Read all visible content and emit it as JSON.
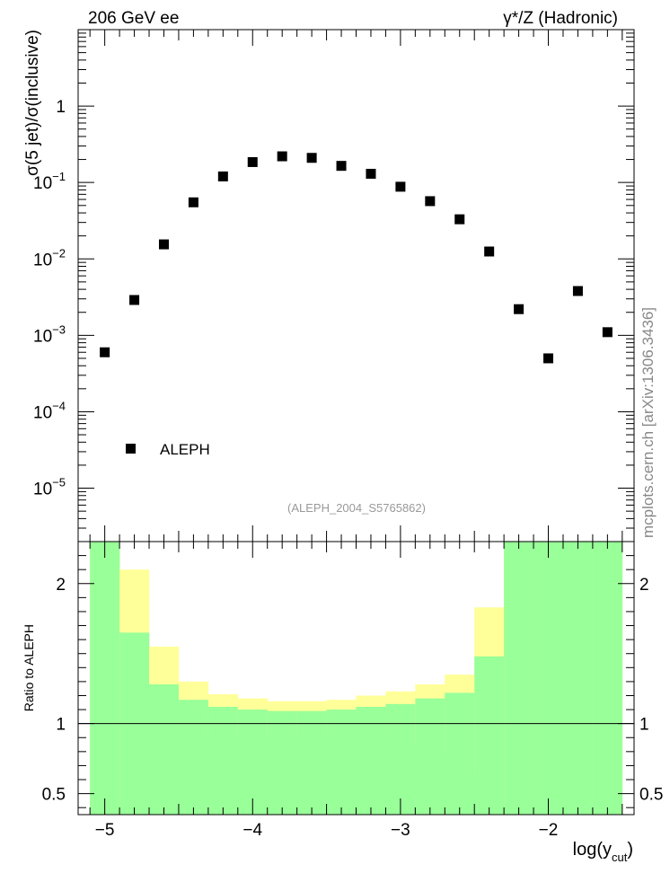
{
  "header": {
    "left_title": "206 GeV ee",
    "right_title": "γ*/Z (Hadronic)"
  },
  "side_label": "mcplots.cern.ch [arXiv:1306.3436]",
  "colors": {
    "band_inner": "#99ff99",
    "band_outer": "#ffff99",
    "marker": "#000000"
  },
  "chart_data": [
    {
      "type": "scatter",
      "title": "",
      "ylabel_parts": {
        "a": "σ(5 jet)/σ(inclusive)"
      },
      "yscale": "log",
      "ylim": [
        2e-06,
        10
      ],
      "xlim": [
        -5.18,
        -1.42
      ],
      "y_ticks": [
        {
          "value": 1e-05,
          "base": "10",
          "exp": "−5"
        },
        {
          "value": 0.0001,
          "base": "10",
          "exp": "−4"
        },
        {
          "value": 0.001,
          "base": "10",
          "exp": "−3"
        },
        {
          "value": 0.01,
          "base": "10",
          "exp": "−2"
        },
        {
          "value": 0.1,
          "base": "10",
          "exp": "−1"
        },
        {
          "value": 1,
          "base": "1",
          "exp": ""
        }
      ],
      "legend": {
        "label": "ALEPH",
        "position": "bottom-left"
      },
      "watermark": "(ALEPH_2004_S5765862)",
      "series": [
        {
          "name": "ALEPH",
          "x": [
            -5.0,
            -4.8,
            -4.6,
            -4.4,
            -4.2,
            -4.0,
            -3.8,
            -3.6,
            -3.4,
            -3.2,
            -3.0,
            -2.8,
            -2.6,
            -2.4,
            -2.2,
            -2.0,
            -1.8,
            -1.6
          ],
          "y": [
            0.0006,
            0.0029,
            0.0155,
            0.055,
            0.12,
            0.185,
            0.22,
            0.21,
            0.165,
            0.13,
            0.088,
            0.057,
            0.033,
            0.0125,
            0.0022,
            0.0005,
            0.0038,
            0.0011
          ]
        }
      ]
    },
    {
      "type": "area",
      "ylabel": "Ratio to ALEPH",
      "xlabel_main": "log(y",
      "xlabel_sub": "cut",
      "xlabel_close": ")",
      "ylim": [
        0.35,
        2.3
      ],
      "xlim": [
        -5.18,
        -1.42
      ],
      "y_ticks": [
        {
          "value": 0.5,
          "label": "0.5"
        },
        {
          "value": 1,
          "label": "1"
        },
        {
          "value": 2,
          "label": "2"
        }
      ],
      "x_ticks": [
        {
          "value": -5,
          "label": "−5"
        },
        {
          "value": -4,
          "label": "−4"
        },
        {
          "value": -3,
          "label": "−3"
        },
        {
          "value": -2,
          "label": "−2"
        }
      ],
      "reference_line": 1,
      "bin_edges": [
        -5.1,
        -4.9,
        -4.7,
        -4.5,
        -4.3,
        -4.1,
        -3.9,
        -3.7,
        -3.5,
        -3.3,
        -3.1,
        -2.9,
        -2.7,
        -2.5,
        -2.3,
        -2.1,
        -1.9,
        -1.7,
        -1.5
      ],
      "inner_band": {
        "low": [
          0.3,
          0.3,
          0.3,
          0.3,
          0.3,
          0.3,
          0.3,
          0.3,
          0.3,
          0.3,
          0.3,
          0.3,
          0.3,
          0.3,
          0.3,
          0.3,
          0.3,
          0.3
        ],
        "high": [
          2.3,
          1.65,
          1.28,
          1.17,
          1.12,
          1.1,
          1.09,
          1.09,
          1.1,
          1.12,
          1.14,
          1.18,
          1.22,
          1.48,
          2.3,
          2.3,
          2.3,
          2.3
        ]
      },
      "outer_band": {
        "low": [
          0.3,
          0.38,
          0.58,
          0.81,
          0.87,
          0.9,
          0.92,
          0.93,
          0.93,
          0.9,
          0.88,
          0.84,
          0.79,
          0.65,
          0.3,
          0.3,
          0.3,
          0.3
        ],
        "high": [
          2.3,
          2.1,
          1.55,
          1.3,
          1.21,
          1.18,
          1.16,
          1.16,
          1.17,
          1.2,
          1.23,
          1.28,
          1.35,
          1.83,
          2.3,
          2.3,
          2.3,
          2.3
        ]
      }
    }
  ]
}
